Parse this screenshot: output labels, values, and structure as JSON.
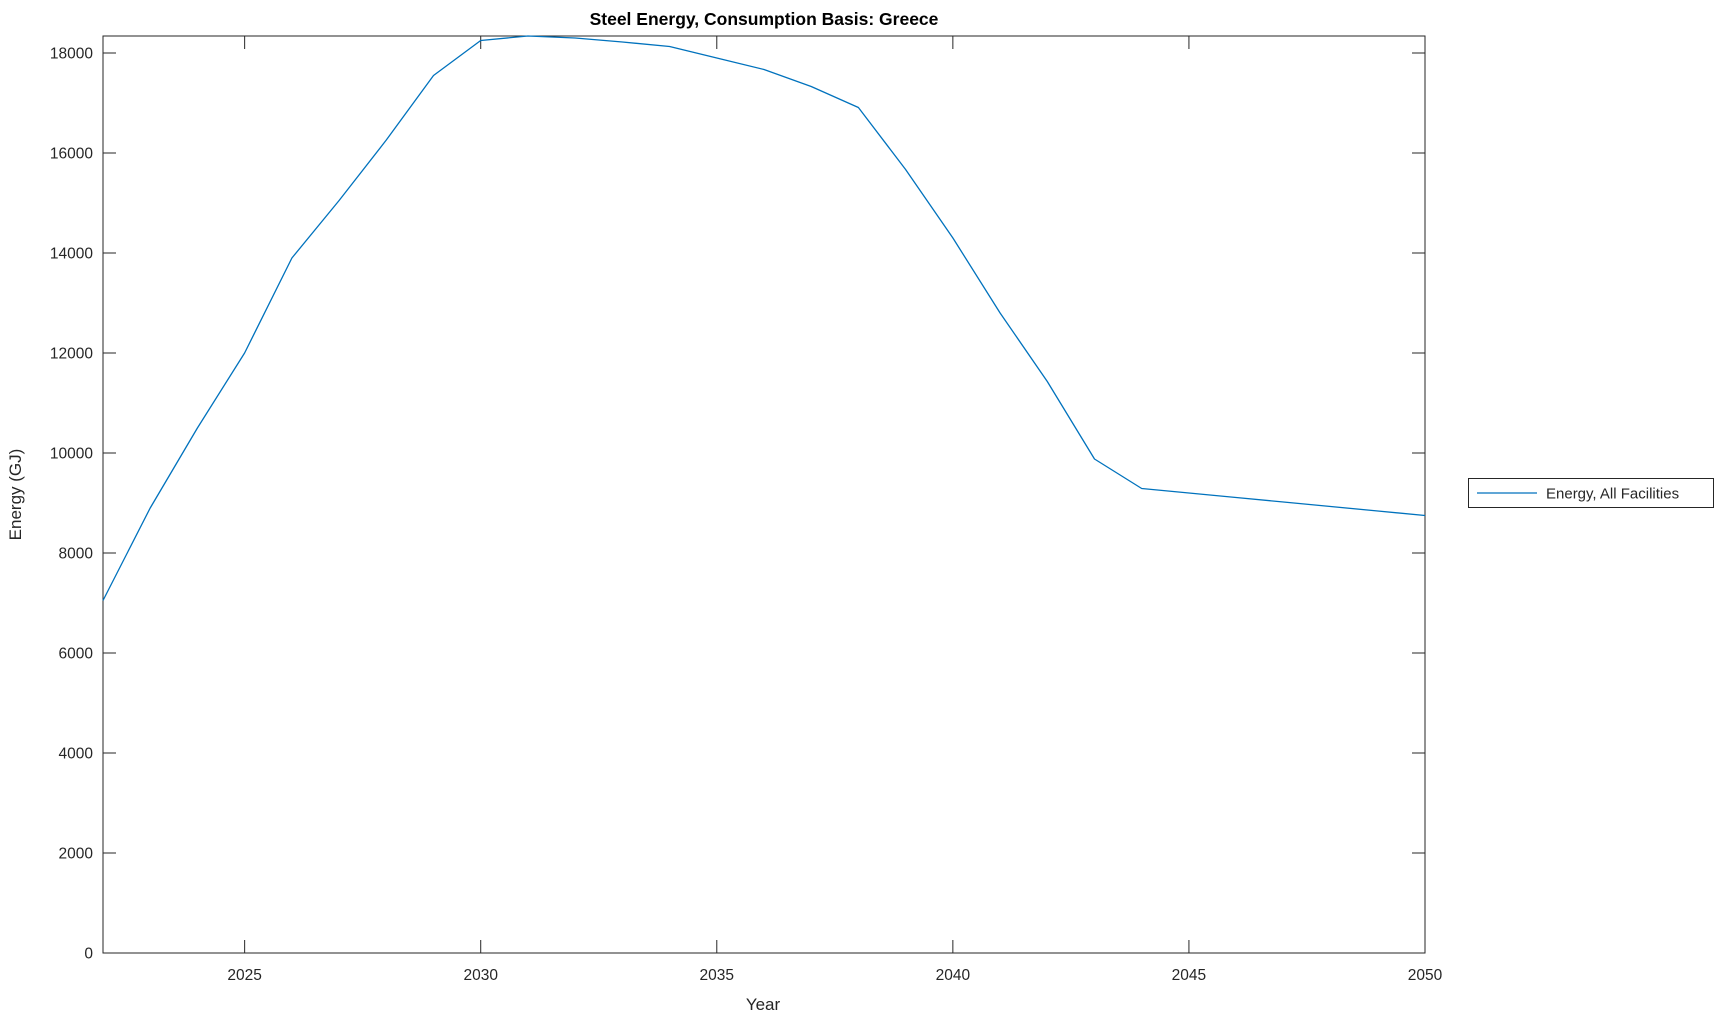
{
  "chart_data": {
    "type": "line",
    "title": "Steel Energy, Consumption Basis: Greece",
    "xlabel": "Year",
    "ylabel": "Energy (GJ)",
    "legend": {
      "position": "right-outside",
      "entries": [
        "Energy, All Facilities"
      ]
    },
    "x": [
      2022,
      2023,
      2024,
      2025,
      2026,
      2027,
      2028,
      2029,
      2030,
      2031,
      2032,
      2033,
      2034,
      2035,
      2036,
      2037,
      2038,
      2039,
      2040,
      2041,
      2042,
      2043,
      2044,
      2045,
      2046,
      2047,
      2048,
      2049,
      2050
    ],
    "series": [
      {
        "name": "Energy, All Facilities",
        "color": "#0072BD",
        "values": [
          7050,
          8900,
          10500,
          12000,
          13900,
          15050,
          16260,
          17550,
          18250,
          18340,
          18300,
          18220,
          18130,
          17900,
          17670,
          17330,
          16910,
          15670,
          14300,
          12800,
          11430,
          9880,
          9290,
          9200,
          9110,
          9020,
          8930,
          8840,
          8750
        ]
      }
    ],
    "xlim": [
      2022,
      2050
    ],
    "ylim": [
      0,
      18340
    ],
    "xticks": [
      2025,
      2030,
      2035,
      2040,
      2045,
      2050
    ],
    "yticks": [
      0,
      2000,
      4000,
      6000,
      8000,
      10000,
      12000,
      14000,
      16000,
      18000
    ],
    "grid": false,
    "box": true,
    "axis_color": "#262626",
    "background": "#ffffff"
  }
}
